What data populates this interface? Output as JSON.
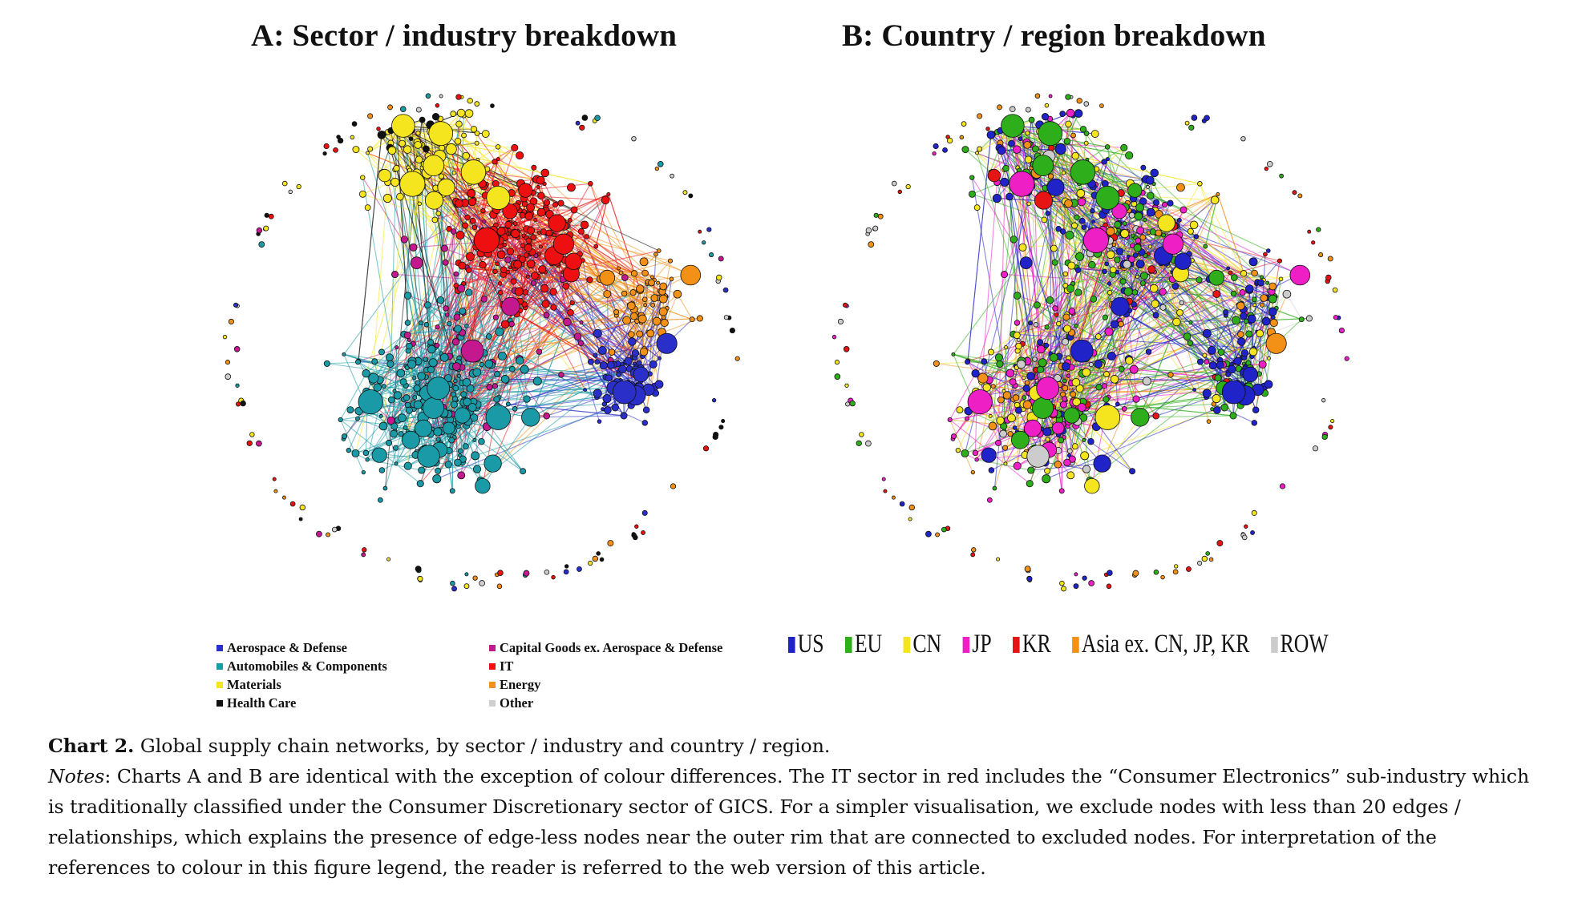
{
  "panels": [
    {
      "title": "A: Sector / industry breakdown"
    },
    {
      "title": "B: Country / region breakdown"
    }
  ],
  "legend_a": [
    {
      "label": "Aerospace & Defense",
      "color": "#2a2fc9"
    },
    {
      "label": "Capital Goods ex. Aerospace & Defense",
      "color": "#c4198e"
    },
    {
      "label": "Automobiles & Components",
      "color": "#1a9aa6"
    },
    {
      "label": "IT",
      "color": "#ee1010"
    },
    {
      "label": "Materials",
      "color": "#f5e51e"
    },
    {
      "label": "Energy",
      "color": "#f39016"
    },
    {
      "label": "Health Care",
      "color": "#111111"
    },
    {
      "label": "Other",
      "color": "#cfcfcf"
    }
  ],
  "legend_b": [
    {
      "label": "US",
      "color": "#1f23c8"
    },
    {
      "label": "EU",
      "color": "#2fae1c"
    },
    {
      "label": "CN",
      "color": "#f5e51e"
    },
    {
      "label": "JP",
      "color": "#ee1fc4"
    },
    {
      "label": "KR",
      "color": "#e61414"
    },
    {
      "label": "Asia ex. CN, JP, KR",
      "color": "#f39016"
    },
    {
      "label": "ROW",
      "color": "#cccccc"
    }
  ],
  "caption": {
    "label": "Chart 2.",
    "text": "Global supply chain networks, by sector / industry and country / region.",
    "notes_label": "Notes",
    "notes_text": ": Charts A and B are identical with the exception of colour differences. The IT sector in red includes the “Consumer Electronics” sub-industry which is traditionally classified under the Consumer Discretionary sector of GICS. For a simpler visualisation, we exclude nodes with less than 20 edges / relationships, which explains the presence of edge-less nodes near the outer rim that are connected to excluded nodes. For interpretation of the references to colour in this figure legend, the reader is referred to the web version of this article."
  }
}
